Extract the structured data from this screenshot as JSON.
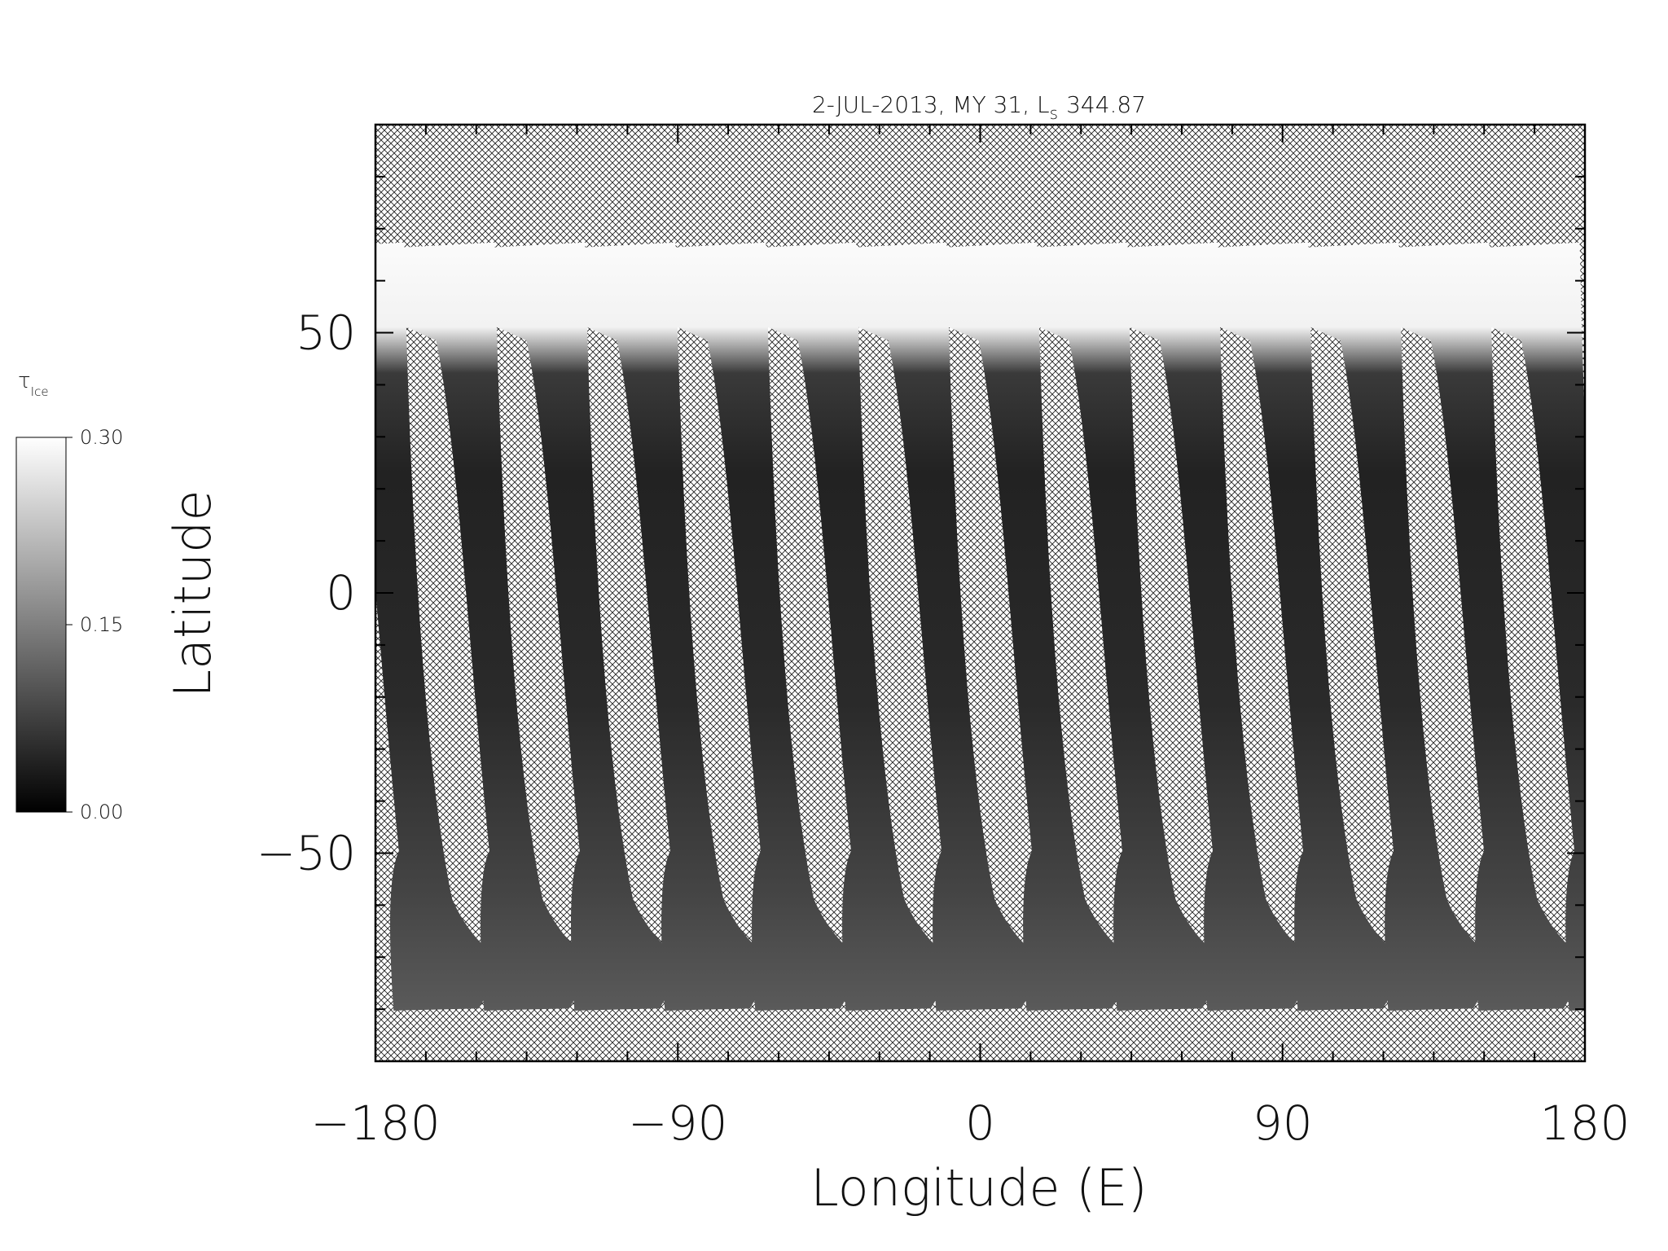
{
  "chart_data": {
    "type": "map",
    "title": {
      "text": "2-JUL-2013, MY 31,  L",
      "subscript": "s",
      "value": "344.87"
    },
    "xlabel": "Longitude (E)",
    "ylabel": "Latitude",
    "xlim": [
      -180,
      180
    ],
    "ylim": [
      -90,
      90
    ],
    "xticks": [
      {
        "value": -180,
        "label": "−180"
      },
      {
        "value": -90,
        "label": "−90"
      },
      0,
      90,
      180
    ],
    "yticks": [
      {
        "value": -50,
        "label": "−50"
      },
      0,
      50
    ],
    "xminorticks": [
      -165,
      -150,
      -135,
      -120,
      -105,
      -75,
      -60,
      -45,
      -30,
      -15,
      15,
      30,
      45,
      60,
      75,
      105,
      120,
      135,
      150,
      165
    ],
    "yminorticks": [
      -80,
      -70,
      -60,
      -40,
      -30,
      -20,
      -10,
      10,
      20,
      30,
      40,
      60,
      70,
      80
    ],
    "colorbar": {
      "label": "τ",
      "label_subscript": "Ice",
      "lim": [
        0,
        0.3
      ],
      "ticks": [
        {
          "value": 0,
          "label": "0.00"
        },
        {
          "value": 0.15,
          "label": "0.15"
        },
        {
          "value": 0.3,
          "label": "0.30"
        }
      ]
    }
  }
}
